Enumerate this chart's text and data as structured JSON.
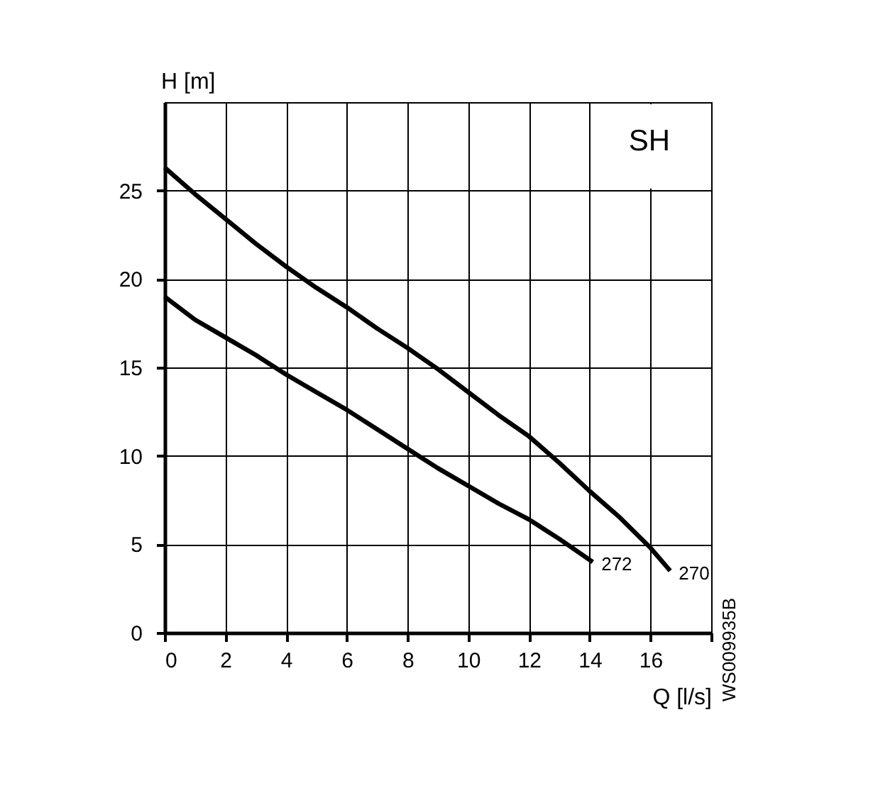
{
  "chart_data": {
    "type": "line",
    "title": "SH",
    "xlabel": "Q [l/s]",
    "ylabel": "H [m]",
    "annotations": [
      "WS009935B"
    ],
    "xlim": [
      0,
      18
    ],
    "ylim": [
      0,
      30
    ],
    "xticks": [
      0,
      2,
      4,
      6,
      8,
      10,
      12,
      14,
      16,
      {
        "value": 18,
        "label": null
      }
    ],
    "yticks": [
      0,
      5,
      10,
      15,
      20,
      25
    ],
    "grid": true,
    "line_style": "solid",
    "series": [
      {
        "name": "270",
        "color": "#000000",
        "x": [
          0,
          1,
          2,
          3,
          4,
          5,
          6,
          7,
          8,
          9,
          10,
          11,
          12,
          13,
          14,
          15,
          16,
          16.65
        ],
        "values": [
          26.3,
          24.8,
          23.4,
          22.0,
          20.7,
          19.5,
          18.4,
          17.2,
          16.1,
          14.9,
          13.6,
          12.3,
          11.1,
          9.6,
          8.0,
          6.5,
          4.8,
          3.5
        ]
      },
      {
        "name": "272",
        "color": "#000000",
        "x": [
          0,
          1,
          2,
          3,
          4,
          5,
          6,
          7,
          8,
          9,
          10,
          11,
          12,
          13,
          14.1
        ],
        "values": [
          19.0,
          17.7,
          16.7,
          15.7,
          14.6,
          13.6,
          12.6,
          11.5,
          10.4,
          9.3,
          8.3,
          7.3,
          6.4,
          5.3,
          4.0
        ]
      }
    ]
  }
}
